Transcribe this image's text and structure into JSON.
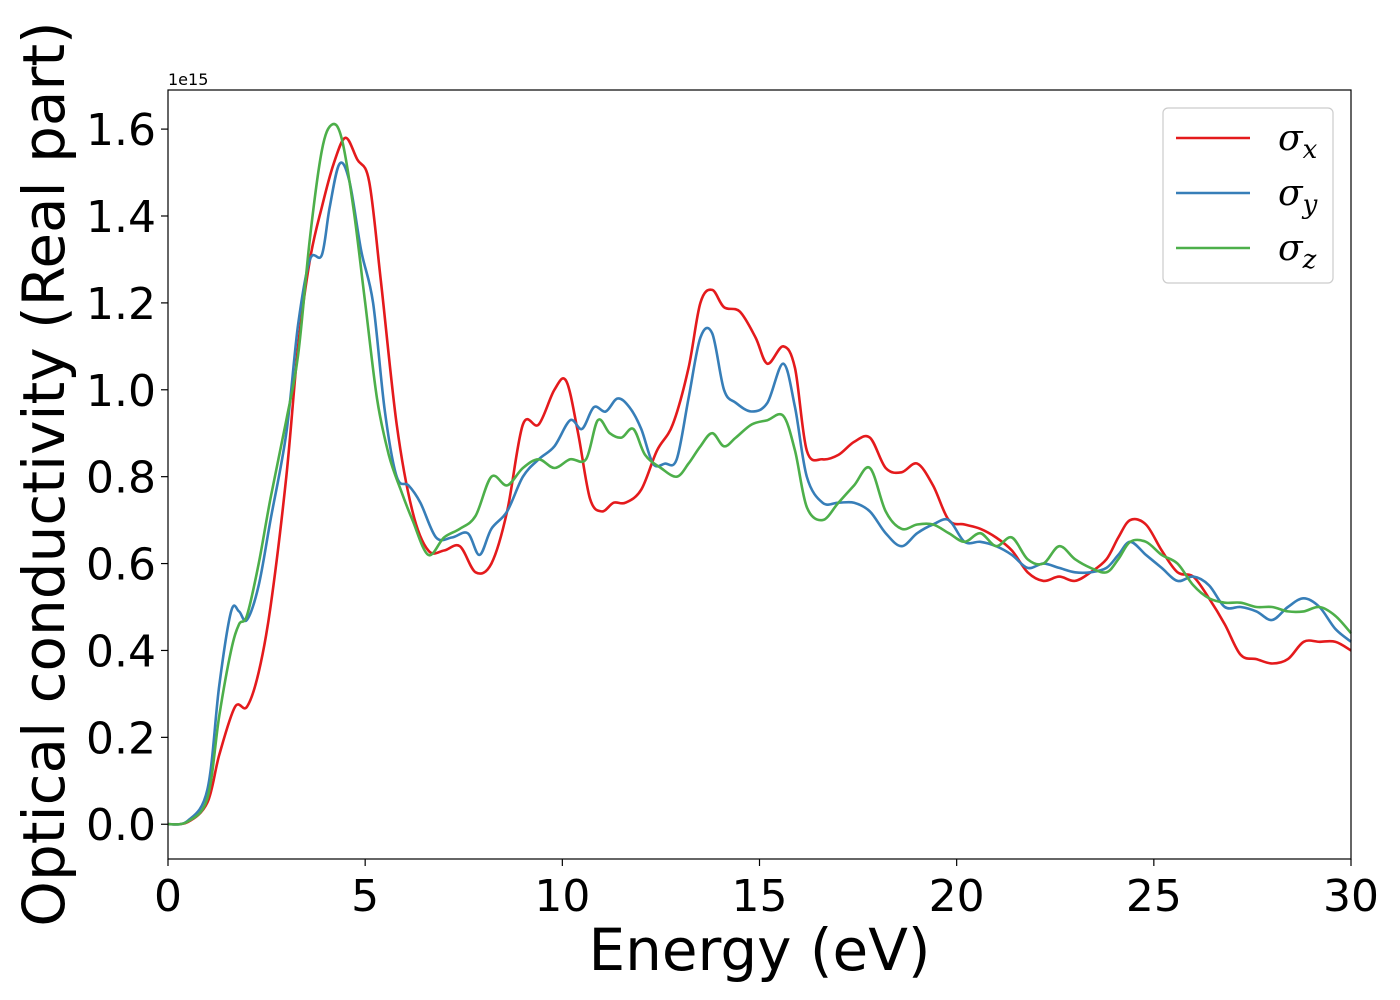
{
  "chart_data": {
    "type": "line",
    "title": "",
    "xlabel": "Energy (eV)",
    "ylabel": "Optical conductivity (Real part)",
    "y_offset_label": "1e15",
    "xlim": [
      0,
      30
    ],
    "ylim": [
      -0.08,
      1.69
    ],
    "xticks": [
      0,
      5,
      10,
      15,
      20,
      25,
      30
    ],
    "xtick_labels": [
      "0",
      "5",
      "10",
      "15",
      "20",
      "25",
      "30"
    ],
    "yticks": [
      0.0,
      0.2,
      0.4,
      0.6,
      0.8,
      1.0,
      1.2,
      1.4,
      1.6
    ],
    "ytick_labels": [
      "0.0",
      "0.2",
      "0.4",
      "0.6",
      "0.8",
      "1.0",
      "1.2",
      "1.4",
      "1.6"
    ],
    "grid": false,
    "legend_position": "top-right",
    "series": [
      {
        "name": "σx",
        "symbol": "σ",
        "subscript": "x",
        "color": "#e41a1c",
        "x": [
          0,
          0.5,
          1,
          1.3,
          1.7,
          2,
          2.3,
          2.6,
          3,
          3.3,
          3.6,
          3.9,
          4.2,
          4.5,
          4.8,
          5.1,
          5.4,
          5.8,
          6.2,
          6.6,
          7,
          7.4,
          7.8,
          8.2,
          8.6,
          9,
          9.4,
          9.8,
          10.1,
          10.4,
          10.7,
          11,
          11.3,
          11.6,
          12,
          12.4,
          12.8,
          13.2,
          13.5,
          13.8,
          14.1,
          14.5,
          14.9,
          15.2,
          15.6,
          15.9,
          16.2,
          16.6,
          17,
          17.4,
          17.8,
          18.2,
          18.6,
          19,
          19.4,
          19.8,
          20.2,
          20.6,
          21,
          21.4,
          21.8,
          22.2,
          22.6,
          23,
          23.4,
          23.8,
          24.1,
          24.4,
          24.8,
          25.2,
          25.6,
          26,
          26.4,
          26.8,
          27.2,
          27.6,
          28,
          28.4,
          28.8,
          29.2,
          29.6,
          30
        ],
        "y": [
          0,
          0.005,
          0.05,
          0.16,
          0.27,
          0.27,
          0.35,
          0.5,
          0.8,
          1.1,
          1.3,
          1.42,
          1.52,
          1.58,
          1.53,
          1.48,
          1.25,
          0.92,
          0.72,
          0.63,
          0.63,
          0.64,
          0.58,
          0.6,
          0.72,
          0.92,
          0.92,
          1.0,
          1.02,
          0.9,
          0.75,
          0.72,
          0.74,
          0.74,
          0.77,
          0.86,
          0.92,
          1.05,
          1.2,
          1.23,
          1.19,
          1.18,
          1.12,
          1.06,
          1.1,
          1.05,
          0.86,
          0.84,
          0.85,
          0.88,
          0.89,
          0.82,
          0.81,
          0.83,
          0.78,
          0.7,
          0.69,
          0.68,
          0.66,
          0.63,
          0.58,
          0.56,
          0.57,
          0.56,
          0.58,
          0.61,
          0.66,
          0.7,
          0.69,
          0.63,
          0.58,
          0.57,
          0.52,
          0.46,
          0.39,
          0.38,
          0.37,
          0.38,
          0.42,
          0.42,
          0.42,
          0.4
        ]
      },
      {
        "name": "σy",
        "symbol": "σ",
        "subscript": "y",
        "color": "#377eb8",
        "x": [
          0,
          0.5,
          1,
          1.3,
          1.6,
          1.8,
          2,
          2.3,
          2.6,
          3,
          3.3,
          3.6,
          3.9,
          4.1,
          4.35,
          4.6,
          4.9,
          5.2,
          5.5,
          5.8,
          6.1,
          6.4,
          6.8,
          7.2,
          7.6,
          7.9,
          8.2,
          8.6,
          9,
          9.4,
          9.8,
          10.2,
          10.5,
          10.8,
          11.1,
          11.4,
          11.7,
          12,
          12.3,
          12.6,
          12.9,
          13.2,
          13.5,
          13.8,
          14.1,
          14.4,
          14.8,
          15.2,
          15.6,
          15.9,
          16.2,
          16.6,
          17,
          17.4,
          17.8,
          18.2,
          18.6,
          19,
          19.4,
          19.8,
          20.2,
          20.6,
          21,
          21.4,
          21.8,
          22.2,
          22.6,
          23,
          23.4,
          23.8,
          24.1,
          24.4,
          24.8,
          25.2,
          25.6,
          26,
          26.4,
          26.8,
          27.2,
          27.6,
          28,
          28.4,
          28.8,
          29.2,
          29.6,
          30
        ],
        "y": [
          0,
          0.008,
          0.08,
          0.32,
          0.49,
          0.49,
          0.47,
          0.55,
          0.7,
          0.9,
          1.15,
          1.3,
          1.31,
          1.42,
          1.52,
          1.48,
          1.32,
          1.2,
          0.95,
          0.8,
          0.78,
          0.74,
          0.66,
          0.66,
          0.67,
          0.62,
          0.68,
          0.72,
          0.8,
          0.84,
          0.87,
          0.93,
          0.91,
          0.96,
          0.95,
          0.98,
          0.96,
          0.91,
          0.83,
          0.83,
          0.84,
          0.98,
          1.12,
          1.13,
          1.0,
          0.97,
          0.95,
          0.97,
          1.06,
          0.96,
          0.8,
          0.74,
          0.74,
          0.74,
          0.72,
          0.67,
          0.64,
          0.67,
          0.69,
          0.7,
          0.65,
          0.65,
          0.64,
          0.62,
          0.59,
          0.6,
          0.59,
          0.58,
          0.58,
          0.59,
          0.62,
          0.65,
          0.62,
          0.59,
          0.56,
          0.57,
          0.55,
          0.5,
          0.5,
          0.49,
          0.47,
          0.5,
          0.52,
          0.5,
          0.45,
          0.42
        ]
      },
      {
        "name": "σz",
        "symbol": "σ",
        "subscript": "z",
        "color": "#4daf4a",
        "x": [
          0,
          0.5,
          1,
          1.3,
          1.6,
          1.8,
          2,
          2.3,
          2.6,
          3,
          3.3,
          3.6,
          3.9,
          4.15,
          4.4,
          4.7,
          5,
          5.3,
          5.6,
          5.9,
          6.2,
          6.6,
          7,
          7.4,
          7.8,
          8.2,
          8.6,
          9,
          9.4,
          9.8,
          10.2,
          10.6,
          10.9,
          11.2,
          11.5,
          11.8,
          12.1,
          12.5,
          12.9,
          13.2,
          13.5,
          13.8,
          14.1,
          14.4,
          14.8,
          15.2,
          15.6,
          15.9,
          16.2,
          16.6,
          17,
          17.4,
          17.8,
          18.2,
          18.6,
          19,
          19.4,
          19.8,
          20.2,
          20.6,
          21,
          21.4,
          21.8,
          22.2,
          22.6,
          23,
          23.4,
          23.8,
          24.1,
          24.4,
          24.8,
          25.2,
          25.6,
          26,
          26.4,
          26.8,
          27.2,
          27.6,
          28,
          28.4,
          28.8,
          29.2,
          29.6,
          30
        ],
        "y": [
          0,
          0.006,
          0.06,
          0.25,
          0.4,
          0.46,
          0.48,
          0.6,
          0.75,
          0.93,
          1.08,
          1.35,
          1.55,
          1.61,
          1.58,
          1.42,
          1.2,
          0.98,
          0.85,
          0.77,
          0.7,
          0.62,
          0.66,
          0.68,
          0.71,
          0.8,
          0.78,
          0.82,
          0.84,
          0.82,
          0.84,
          0.84,
          0.93,
          0.9,
          0.89,
          0.91,
          0.85,
          0.82,
          0.8,
          0.83,
          0.87,
          0.9,
          0.87,
          0.89,
          0.92,
          0.93,
          0.94,
          0.86,
          0.73,
          0.7,
          0.74,
          0.78,
          0.82,
          0.72,
          0.68,
          0.69,
          0.69,
          0.67,
          0.65,
          0.67,
          0.64,
          0.66,
          0.61,
          0.6,
          0.64,
          0.61,
          0.59,
          0.58,
          0.61,
          0.65,
          0.65,
          0.62,
          0.6,
          0.55,
          0.52,
          0.51,
          0.51,
          0.5,
          0.5,
          0.49,
          0.49,
          0.5,
          0.48,
          0.44
        ]
      }
    ]
  }
}
